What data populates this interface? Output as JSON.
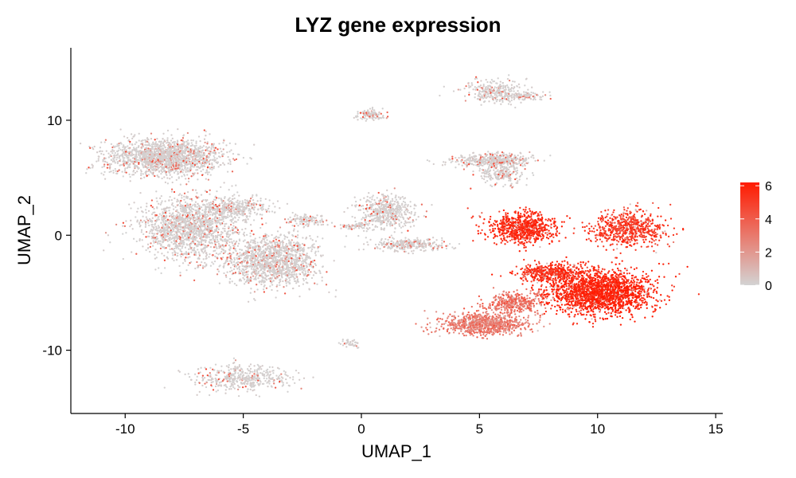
{
  "chart_data": {
    "type": "scatter",
    "title": "LYZ gene expression",
    "xlabel": "UMAP_1",
    "ylabel": "UMAP_2",
    "xlim": [
      -12.3,
      15.3
    ],
    "ylim": [
      -15.5,
      16.3
    ],
    "xticks": [
      -10,
      -5,
      0,
      5,
      10,
      15
    ],
    "xtick_labels": [
      "-10",
      "-5",
      "0",
      "5",
      "10",
      "15"
    ],
    "yticks": [
      -10,
      0,
      10
    ],
    "ytick_labels": [
      "-10",
      "0",
      "10"
    ],
    "grid": false,
    "color_scale": {
      "low": "#d3d3d3",
      "high": "#ff1a00",
      "min": 0,
      "max": 6.2,
      "ticks": [
        0,
        2,
        4,
        6
      ],
      "tick_labels": [
        "0",
        "2",
        "4",
        "6"
      ],
      "placement": "right"
    },
    "clusters": [
      {
        "name": "upper-left cluster",
        "cx": -8.3,
        "cy": 6.8,
        "rx": 2.5,
        "ry": 1.6,
        "n": 1700,
        "expr": 0.4
      },
      {
        "name": "left-middle cluster",
        "cx": -7.3,
        "cy": 0.6,
        "rx": 2.0,
        "ry": 2.6,
        "n": 1500,
        "expr": 0.4
      },
      {
        "name": "bridge",
        "cx": -5.4,
        "cy": 2.4,
        "rx": 1.6,
        "ry": 0.9,
        "n": 350,
        "expr": 0.45
      },
      {
        "name": "lower-middle cluster",
        "cx": -3.8,
        "cy": -2.2,
        "rx": 2.0,
        "ry": 2.2,
        "n": 1400,
        "expr": 0.55
      },
      {
        "name": "small right arm",
        "cx": -2.3,
        "cy": 1.3,
        "rx": 0.9,
        "ry": 0.5,
        "n": 120,
        "expr": 0.4
      },
      {
        "name": "bottom-left cluster",
        "cx": -5.1,
        "cy": -12.4,
        "rx": 2.0,
        "ry": 1.1,
        "n": 450,
        "expr": 0.35
      },
      {
        "name": "center cluster",
        "cx": 1.1,
        "cy": 2.0,
        "rx": 1.2,
        "ry": 1.5,
        "n": 500,
        "expr": 0.55
      },
      {
        "name": "center-lower strip",
        "cx": 2.0,
        "cy": -0.8,
        "rx": 1.5,
        "ry": 0.5,
        "n": 300,
        "expr": 0.45
      },
      {
        "name": "center thread",
        "cx": -0.3,
        "cy": 0.8,
        "rx": 0.7,
        "ry": 0.3,
        "n": 60,
        "expr": 0.3
      },
      {
        "name": "top small cluster",
        "cx": 0.4,
        "cy": 10.5,
        "rx": 0.7,
        "ry": 0.4,
        "n": 110,
        "expr": 0.45
      },
      {
        "name": "top cluster",
        "cx": 5.7,
        "cy": 12.5,
        "rx": 1.2,
        "ry": 1.0,
        "n": 280,
        "expr": 0.6
      },
      {
        "name": "top cluster tail",
        "cx": 6.9,
        "cy": 12.1,
        "rx": 0.9,
        "ry": 0.4,
        "n": 90,
        "expr": 0.45
      },
      {
        "name": "upper-right cluster",
        "cx": 5.6,
        "cy": 6.5,
        "rx": 1.6,
        "ry": 0.6,
        "n": 450,
        "expr": 0.45
      },
      {
        "name": "upper-right cluster lobe",
        "cx": 5.9,
        "cy": 5.3,
        "rx": 1.0,
        "ry": 0.9,
        "n": 200,
        "expr": 0.6
      },
      {
        "name": "right-middle high cluster",
        "cx": 6.9,
        "cy": 0.6,
        "rx": 1.4,
        "ry": 1.3,
        "n": 750,
        "expr": 5.8
      },
      {
        "name": "far-right high arm",
        "cx": 11.3,
        "cy": 0.6,
        "rx": 1.6,
        "ry": 1.6,
        "n": 650,
        "expr": 5.1
      },
      {
        "name": "large high cluster",
        "cx": 10.1,
        "cy": -5.0,
        "rx": 2.2,
        "ry": 1.9,
        "n": 2000,
        "expr": 6.0
      },
      {
        "name": "bridge high",
        "cx": 8.0,
        "cy": -3.2,
        "rx": 1.4,
        "ry": 0.8,
        "n": 450,
        "expr": 5.4
      },
      {
        "name": "lower-right medium cluster",
        "cx": 5.2,
        "cy": -7.7,
        "rx": 1.9,
        "ry": 1.0,
        "n": 800,
        "expr": 2.9
      },
      {
        "name": "lower-right medium spread",
        "cx": 6.5,
        "cy": -5.8,
        "rx": 1.2,
        "ry": 0.9,
        "n": 350,
        "expr": 3.3
      },
      {
        "name": "small lower cluster",
        "cx": -0.5,
        "cy": -9.4,
        "rx": 0.4,
        "ry": 0.3,
        "n": 40,
        "expr": 0.4
      }
    ]
  }
}
